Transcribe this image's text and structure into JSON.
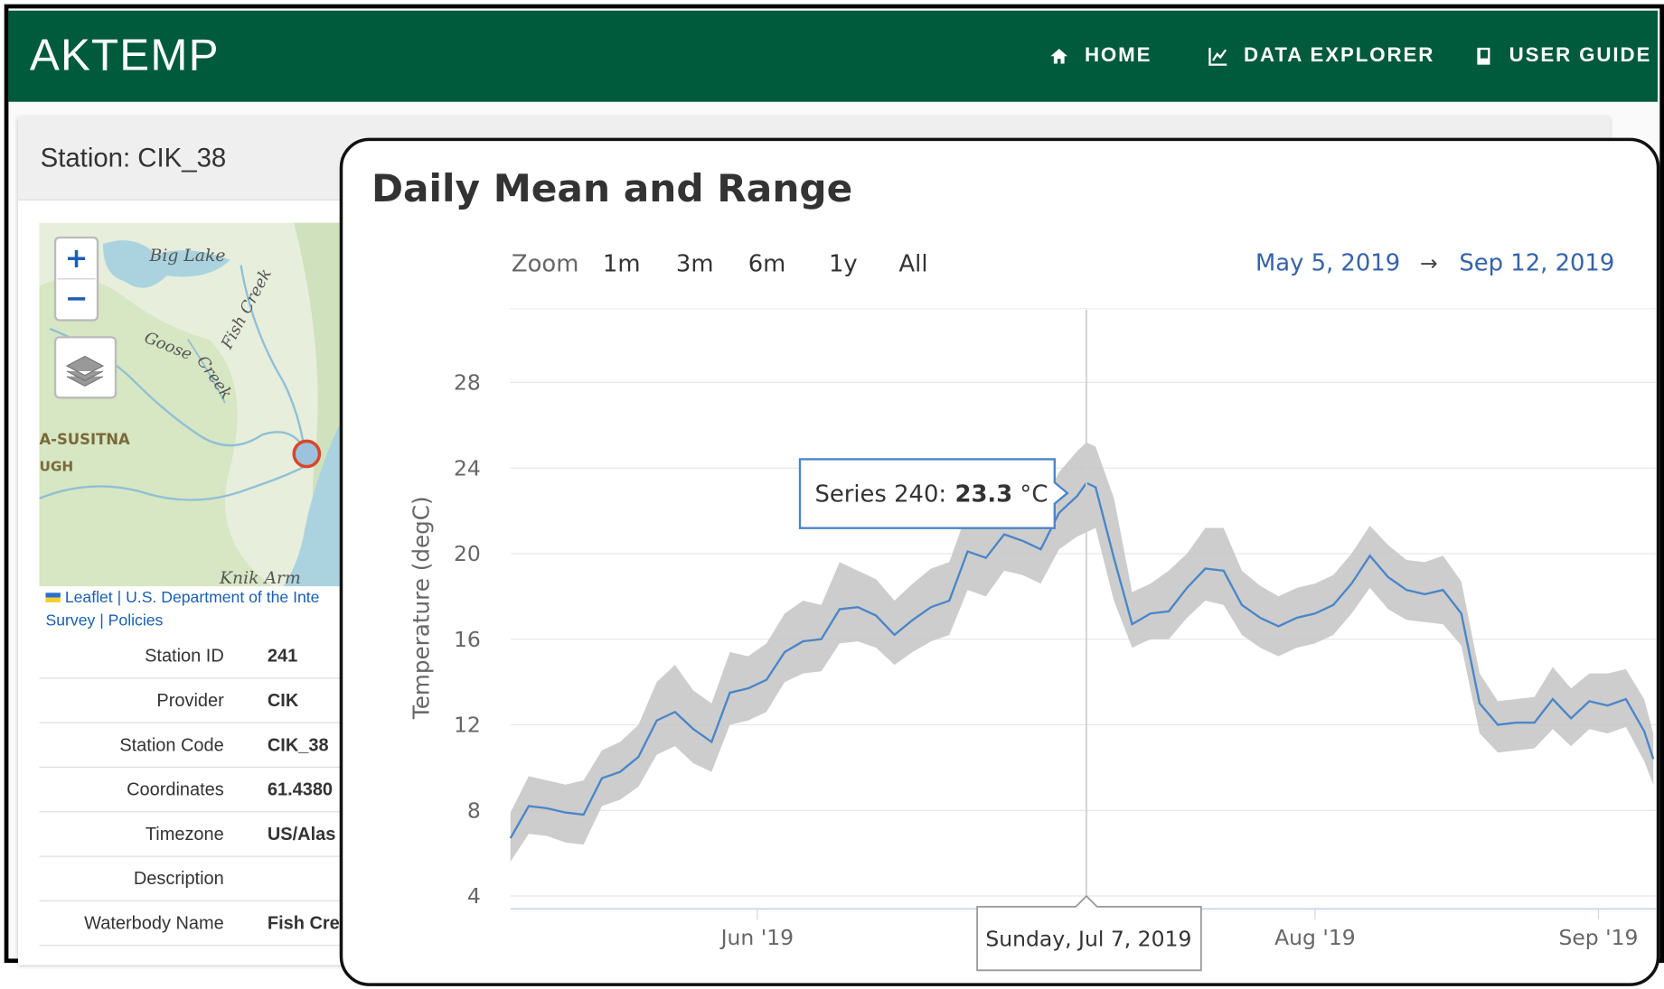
{
  "header": {
    "brand": "AKTEMP",
    "nav": [
      "HOME",
      "DATA EXPLORER",
      "USER GUIDE"
    ]
  },
  "station": {
    "title": "Station: CIK_38",
    "map": {
      "zoom_in": "+",
      "zoom_out": "−",
      "labels": [
        "Big Lake",
        "Fish Creek",
        "Goose",
        "Creek",
        "A-SUSITNA",
        "UGH",
        "Knik Arm"
      ],
      "attribution": [
        "Leaflet",
        "| U.S. Department of the Inte",
        "Survey | Policies"
      ]
    },
    "table": {
      "rows": [
        [
          "Station ID",
          "241"
        ],
        [
          "Provider",
          "CIK"
        ],
        [
          "Station Code",
          "CIK_38"
        ],
        [
          "Coordinates",
          "61.4380"
        ],
        [
          "Timezone",
          "US/Alas"
        ],
        [
          "Description"
        ],
        [
          "Waterbody Name",
          "Fish Cre"
        ]
      ]
    }
  },
  "chart_data": {
    "type": "line",
    "title": "Daily Mean and Range",
    "zoom": {
      "label": "Zoom",
      "buttons": [
        "1m",
        "3m",
        "6m",
        "1y",
        "All"
      ]
    },
    "date_range": {
      "from": "May 5, 2019",
      "arrow": "→",
      "to": "Sep 12, 2019"
    },
    "y_label": "Temperature (degC)",
    "x": [
      "2019-05-05",
      "2019-05-07",
      "2019-05-09",
      "2019-05-11",
      "2019-05-13",
      "2019-05-15",
      "2019-05-17",
      "2019-05-19",
      "2019-05-21",
      "2019-05-23",
      "2019-05-25",
      "2019-05-27",
      "2019-05-29",
      "2019-05-31",
      "2019-06-02",
      "2019-06-04",
      "2019-06-06",
      "2019-06-08",
      "2019-06-10",
      "2019-06-12",
      "2019-06-14",
      "2019-06-16",
      "2019-06-18",
      "2019-06-20",
      "2019-06-22",
      "2019-06-24",
      "2019-06-26",
      "2019-06-28",
      "2019-06-30",
      "2019-07-02",
      "2019-07-04",
      "2019-07-06",
      "2019-07-07",
      "2019-07-08",
      "2019-07-10",
      "2019-07-12",
      "2019-07-14",
      "2019-07-16",
      "2019-07-18",
      "2019-07-20",
      "2019-07-22",
      "2019-07-24",
      "2019-07-26",
      "2019-07-28",
      "2019-07-30",
      "2019-08-01",
      "2019-08-03",
      "2019-08-05",
      "2019-08-07",
      "2019-08-09",
      "2019-08-11",
      "2019-08-13",
      "2019-08-15",
      "2019-08-17",
      "2019-08-19",
      "2019-08-21",
      "2019-08-23",
      "2019-08-25",
      "2019-08-27",
      "2019-08-29",
      "2019-08-31",
      "2019-09-02",
      "2019-09-04",
      "2019-09-06",
      "2019-09-07"
    ],
    "series": [
      {
        "color": "#4a86c8",
        "values": [
          6.7,
          8.2,
          8.1,
          7.9,
          7.8,
          9.5,
          9.8,
          10.5,
          12.2,
          12.6,
          11.8,
          11.2,
          13.5,
          13.7,
          14.1,
          15.4,
          15.9,
          16.0,
          17.4,
          17.5,
          17.1,
          16.2,
          16.9,
          17.5,
          17.8,
          20.1,
          19.8,
          20.9,
          20.6,
          20.2,
          21.9,
          22.7,
          23.3,
          23.1,
          19.8,
          16.7,
          17.2,
          17.3,
          18.4,
          19.3,
          19.2,
          17.6,
          17.0,
          16.6,
          17.0,
          17.2,
          17.6,
          18.6,
          19.9,
          18.9,
          18.3,
          18.1,
          18.3,
          17.2,
          13.0,
          12.0,
          12.1,
          12.1,
          13.2,
          12.3,
          13.1,
          12.9,
          13.2,
          11.7,
          10.4
        ]
      }
    ],
    "range": {
      "color": "#c4c4c4",
      "high": [
        7.9,
        9.6,
        9.4,
        9.2,
        9.4,
        10.8,
        11.2,
        12.0,
        14.0,
        14.8,
        13.6,
        13.0,
        15.4,
        15.2,
        15.8,
        17.2,
        17.8,
        17.6,
        19.6,
        19.2,
        18.8,
        17.8,
        18.6,
        19.3,
        19.6,
        22.0,
        21.6,
        22.6,
        22.3,
        22.2,
        23.8,
        24.8,
        25.2,
        25.0,
        22.6,
        18.2,
        18.6,
        19.2,
        20.0,
        21.2,
        21.2,
        19.2,
        18.5,
        18.0,
        18.4,
        18.6,
        19.0,
        20.0,
        21.3,
        20.4,
        19.7,
        19.6,
        19.9,
        18.7,
        14.4,
        13.1,
        13.2,
        13.3,
        14.7,
        13.7,
        14.4,
        14.4,
        14.6,
        13.2,
        11.6
      ],
      "low": [
        5.6,
        6.9,
        6.8,
        6.5,
        6.4,
        8.2,
        8.5,
        9.1,
        10.6,
        11.0,
        10.2,
        9.8,
        12.0,
        12.2,
        12.6,
        14.0,
        14.4,
        14.5,
        15.8,
        15.9,
        15.6,
        14.8,
        15.4,
        15.9,
        16.2,
        18.3,
        18.0,
        19.2,
        19.0,
        18.6,
        20.2,
        20.8,
        21.0,
        21.2,
        17.8,
        15.6,
        16.0,
        16.0,
        17.0,
        17.8,
        17.6,
        16.2,
        15.6,
        15.2,
        15.6,
        15.8,
        16.2,
        17.2,
        18.4,
        17.4,
        16.9,
        16.8,
        16.7,
        15.7,
        11.6,
        10.7,
        10.8,
        10.9,
        11.8,
        11.0,
        11.8,
        11.6,
        11.9,
        10.3,
        9.2
      ]
    },
    "xlim": [
      "2019-05-05",
      "2019-09-12"
    ],
    "ylim": [
      3.4,
      31.4
    ],
    "yticks": [
      4,
      8,
      12,
      16,
      20,
      24,
      28
    ],
    "xticks": [
      {
        "value": "2019-06-01",
        "label": "Jun '19"
      },
      {
        "value": "2019-08-01",
        "label": "Aug '19"
      },
      {
        "value": "2019-09-01",
        "label": "Sep '19"
      }
    ],
    "grid": true,
    "tooltip": {
      "label": "Series 240:",
      "unit": "°C",
      "date": "Sunday, Jul 7, 2019"
    }
  }
}
